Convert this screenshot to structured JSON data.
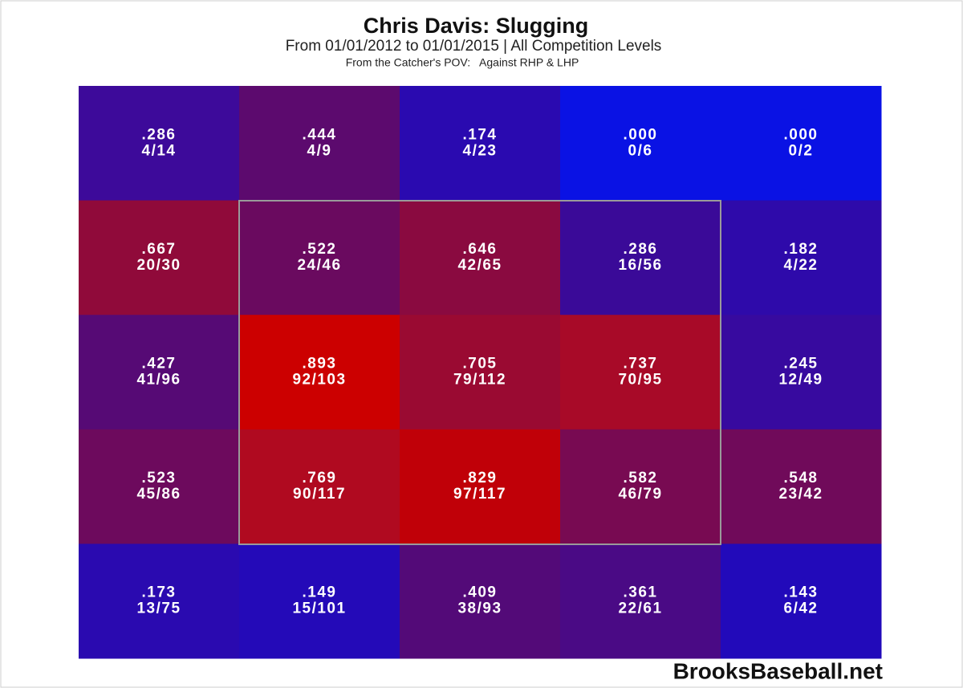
{
  "chart_data": {
    "type": "heatmap",
    "title": "Chris Davis: Slugging",
    "subtitle": "From 01/01/2012 to 01/01/2015 | All Competition Levels",
    "caption": "From the Catcher's POV:   Against RHP & LHP",
    "source": "BrooksBaseball.net",
    "values": [
      [
        0.286,
        0.444,
        0.174,
        0.0,
        0.0
      ],
      [
        0.667,
        0.522,
        0.646,
        0.286,
        0.182
      ],
      [
        0.427,
        0.893,
        0.705,
        0.737,
        0.245
      ],
      [
        0.523,
        0.769,
        0.829,
        0.582,
        0.548
      ],
      [
        0.173,
        0.149,
        0.409,
        0.361,
        0.143
      ]
    ],
    "value_labels": [
      [
        ".286",
        ".444",
        ".174",
        ".000",
        ".000"
      ],
      [
        ".667",
        ".522",
        ".646",
        ".286",
        ".182"
      ],
      [
        ".427",
        ".893",
        ".705",
        ".737",
        ".245"
      ],
      [
        ".523",
        ".769",
        ".829",
        ".582",
        ".548"
      ],
      [
        ".173",
        ".149",
        ".409",
        ".361",
        ".143"
      ]
    ],
    "counts": [
      [
        "4/14",
        "4/9",
        "4/23",
        "0/6",
        "0/2"
      ],
      [
        "20/30",
        "24/46",
        "42/65",
        "16/56",
        "4/22"
      ],
      [
        "41/96",
        "92/103",
        "79/112",
        "70/95",
        "12/49"
      ],
      [
        "45/86",
        "90/117",
        "97/117",
        "46/79",
        "23/42"
      ],
      [
        "13/75",
        "15/101",
        "38/93",
        "22/61",
        "6/42"
      ]
    ],
    "colors": [
      [
        "#3d0a9a",
        "#5c0a6e",
        "#2a0ab0",
        "#0a12e4",
        "#0a12e4"
      ],
      [
        "#900a3a",
        "#6a0a5f",
        "#8a0a40",
        "#3a0a98",
        "#2e0aaa"
      ],
      [
        "#560a75",
        "#cc0000",
        "#9a0a32",
        "#a80a28",
        "#370a9f"
      ],
      [
        "#6d0a5d",
        "#b00a20",
        "#c00008",
        "#780a52",
        "#700a5a"
      ],
      [
        "#2a0ab0",
        "#240ab8",
        "#530a78",
        "#4a0a85",
        "#220aba"
      ]
    ]
  }
}
